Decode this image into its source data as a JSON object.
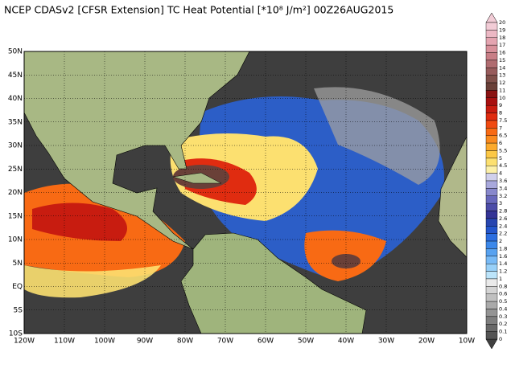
{
  "title": "NCEP CDASv2 [CFSR Extension] TC Heat Potential [*10⁸ J/m²] 00Z26AUG2015",
  "map": {
    "xlim": [
      -120,
      -10
    ],
    "ylim": [
      -10,
      50
    ],
    "grid": true,
    "xticks": [
      {
        "value": -120,
        "label": "120W"
      },
      {
        "value": -110,
        "label": "110W"
      },
      {
        "value": -100,
        "label": "100W"
      },
      {
        "value": -90,
        "label": "90W"
      },
      {
        "value": -80,
        "label": "80W"
      },
      {
        "value": -70,
        "label": "70W"
      },
      {
        "value": -60,
        "label": "60W"
      },
      {
        "value": -50,
        "label": "50W"
      },
      {
        "value": -40,
        "label": "40W"
      },
      {
        "value": -30,
        "label": "30W"
      },
      {
        "value": -20,
        "label": "20W"
      },
      {
        "value": -10,
        "label": "10W"
      }
    ],
    "yticks": [
      {
        "value": 50,
        "label": "50N"
      },
      {
        "value": 45,
        "label": "45N"
      },
      {
        "value": 40,
        "label": "40N"
      },
      {
        "value": 35,
        "label": "35N"
      },
      {
        "value": 30,
        "label": "30N"
      },
      {
        "value": 25,
        "label": "25N"
      },
      {
        "value": 20,
        "label": "20N"
      },
      {
        "value": 15,
        "label": "15N"
      },
      {
        "value": 10,
        "label": "10N"
      },
      {
        "value": 5,
        "label": "5N"
      },
      {
        "value": 0,
        "label": "EQ"
      },
      {
        "value": -5,
        "label": "5S"
      },
      {
        "value": -10,
        "label": "10S"
      }
    ]
  },
  "colorbar": {
    "levels": [
      20,
      19,
      18,
      17,
      16,
      15,
      14,
      13,
      12,
      11,
      10,
      9,
      8,
      7.5,
      7,
      6.5,
      6,
      5.5,
      5,
      4.5,
      4,
      3.6,
      3.4,
      3.2,
      3,
      2.8,
      2.6,
      2.4,
      2.2,
      2,
      1.8,
      1.6,
      1.4,
      1.2,
      1,
      0.8,
      0.6,
      0.5,
      0.4,
      0.3,
      0.2,
      0.1,
      0
    ],
    "colors": [
      "#f2ccd6",
      "#ecb8c4",
      "#e4a4b0",
      "#d8909a",
      "#c87e86",
      "#b06c70",
      "#985c5c",
      "#80504a",
      "#6a4038",
      "#8a1212",
      "#a81010",
      "#c81c10",
      "#e02c10",
      "#f04a12",
      "#f86a14",
      "#fa8a1e",
      "#fcaa2c",
      "#fcc846",
      "#fce070",
      "#fcf0a8",
      "#d0d0ec",
      "#a8a8dc",
      "#8888cc",
      "#6868bc",
      "#4c4ca8",
      "#343496",
      "#2846b0",
      "#2456cc",
      "#2c6ee0",
      "#3c88ea",
      "#58a2f0",
      "#78baf6",
      "#98d0f8",
      "#bce4fa",
      "#eaeaea",
      "#d4d4d4",
      "#c0c0c0",
      "#aaaaaa",
      "#949494",
      "#7e7e7e",
      "#686868",
      "#545454",
      "#404040"
    ]
  }
}
